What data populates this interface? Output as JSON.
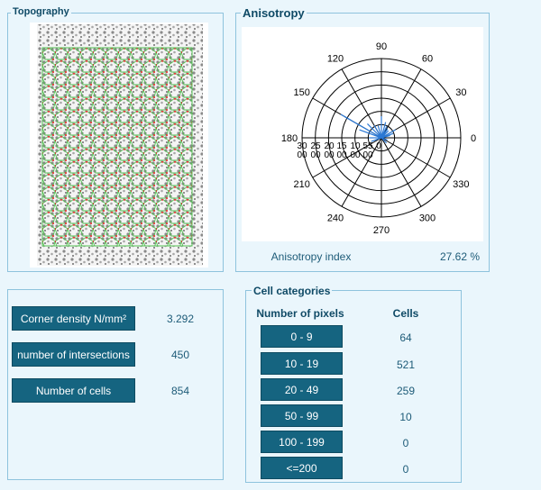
{
  "topography": {
    "title": "Topography"
  },
  "anisotropy": {
    "title": "Anisotropy",
    "polar_angle_labels": [
      "90",
      "120",
      "150",
      "180",
      "210",
      "240",
      "270",
      "300",
      "330",
      "0",
      "30",
      "60"
    ],
    "polar_radius_labels": [
      "30 00",
      "25 00",
      "20 00",
      "15 00",
      "10 00",
      "55 00",
      "0"
    ],
    "index_label": "Anisotropy index",
    "index_value": "27.62 %"
  },
  "metrics": [
    {
      "label": "Corner density N/mm²",
      "value": "3.292"
    },
    {
      "label": "number of intersections",
      "value": "450"
    },
    {
      "label": "Number of cells",
      "value": "854"
    }
  ],
  "cell_categories": {
    "title": "Cell categories",
    "col_pixels": "Number of pixels",
    "col_cells": "Cells",
    "rows": [
      {
        "range": "0 - 9",
        "cells": "64"
      },
      {
        "range": "10 - 19",
        "cells": "521"
      },
      {
        "range": "20 - 49",
        "cells": "259"
      },
      {
        "range": "50 - 99",
        "cells": "10"
      },
      {
        "range": "100 - 199",
        "cells": "0"
      },
      {
        "range": "<=200",
        "cells": "0"
      }
    ]
  },
  "colors": {
    "accent": "#156480",
    "border": "#8ec3dd",
    "background": "#eaf6fc"
  }
}
